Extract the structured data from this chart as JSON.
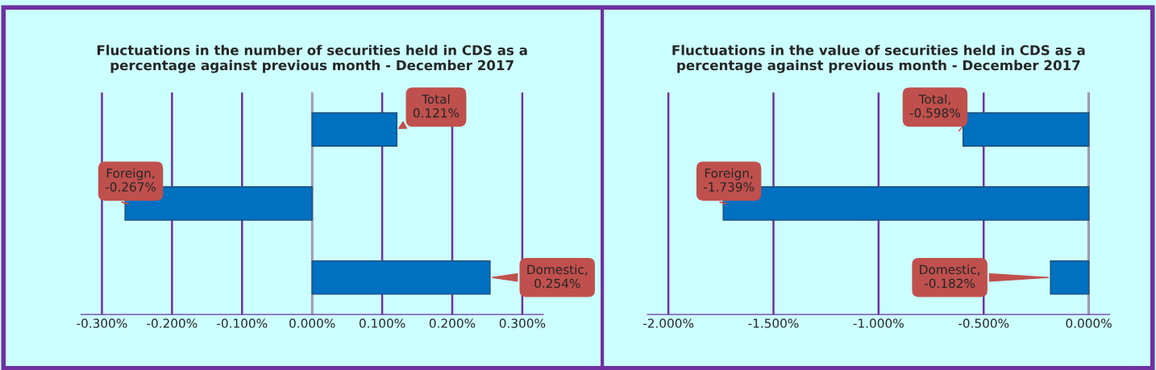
{
  "chart_data": [
    {
      "type": "bar",
      "orientation": "horizontal",
      "title": "Fluctuations in the number of securities held in CDS as a\npercentage against previous month - December 2017",
      "categories": [
        null,
        null,
        null
      ],
      "values": [
        0.121,
        -0.267,
        0.254
      ],
      "color": "#0070c0",
      "value_labels": [
        "Total\n0.121%",
        "Foreign,\n-0.267%",
        "Domestic,\n0.254%"
      ],
      "xlim": [
        -0.33,
        0.33
      ],
      "xticks": [
        {
          "value": -0.3,
          "label": "-0.300%"
        },
        {
          "value": -0.2,
          "label": "-0.200%"
        },
        {
          "value": -0.1,
          "label": "-0.100%"
        },
        {
          "value": 0,
          "label": "0.000%"
        },
        {
          "value": 0.1,
          "label": "0.100%"
        },
        {
          "value": 0.2,
          "label": "0.200%"
        },
        {
          "value": 0.3,
          "label": "0.300%"
        }
      ],
      "grid": "x",
      "tick_labels": "x",
      "legend": false
    },
    {
      "type": "bar",
      "orientation": "horizontal",
      "title": "Fluctuations in the value of securities held in CDS as a\npercentage against previous month - December 2017",
      "categories": [
        null,
        null,
        null
      ],
      "values": [
        -0.598,
        -1.739,
        -0.182
      ],
      "color": "#0070c0",
      "value_labels": [
        "Total,\n-0.598%",
        "Foreign,\n-1.739%",
        "Domestic,\n-0.182%"
      ],
      "xlim": [
        -2.1,
        0.1
      ],
      "xticks": [
        {
          "value": -2.0,
          "label": "-2.000%"
        },
        {
          "value": -1.5,
          "label": "-1.500%"
        },
        {
          "value": -1.0,
          "label": "-1.000%"
        },
        {
          "value": -0.5,
          "label": "-0.500%"
        },
        {
          "value": 0,
          "label": "0.000%"
        }
      ],
      "grid": "x",
      "tick_labels": "x",
      "legend": false
    }
  ]
}
